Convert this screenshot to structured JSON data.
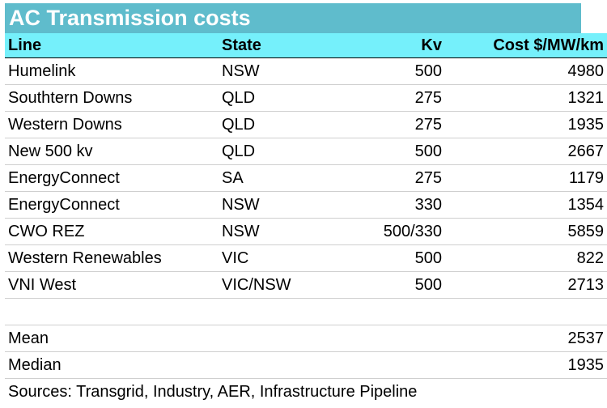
{
  "title": "AC Transmission costs",
  "headers": {
    "line": "Line",
    "state": "State",
    "kv": "Kv",
    "cost": "Cost $/MW/km"
  },
  "rows": [
    {
      "line": "Humelink",
      "state": "NSW",
      "kv": "500",
      "cost": "4980"
    },
    {
      "line": "Southtern Downs",
      "state": "QLD",
      "kv": "275",
      "cost": "1321"
    },
    {
      "line": "Western Downs",
      "state": "QLD",
      "kv": "275",
      "cost": "1935"
    },
    {
      "line": "New 500 kv",
      "state": "QLD",
      "kv": "500",
      "cost": "2667"
    },
    {
      "line": "EnergyConnect",
      "state": "SA",
      "kv": "275",
      "cost": "1179"
    },
    {
      "line": "EnergyConnect",
      "state": "NSW",
      "kv": "330",
      "cost": "1354"
    },
    {
      "line": "CWO REZ",
      "state": "NSW",
      "kv": "500/330",
      "cost": "5859"
    },
    {
      "line": "Western Renewables",
      "state": "VIC",
      "kv": "500",
      "cost": "822"
    },
    {
      "line": "VNI West",
      "state": "VIC/NSW",
      "kv": "500",
      "cost": "2713"
    }
  ],
  "summary": [
    {
      "label": "Mean",
      "value": "2537"
    },
    {
      "label": "Median",
      "value": "1935"
    }
  ],
  "sources": "Sources: Transgrid, Industry, AER, Infrastructure Pipeline",
  "colors": {
    "title_bg": "#5fbccc",
    "header_bg": "#75f0fb"
  }
}
